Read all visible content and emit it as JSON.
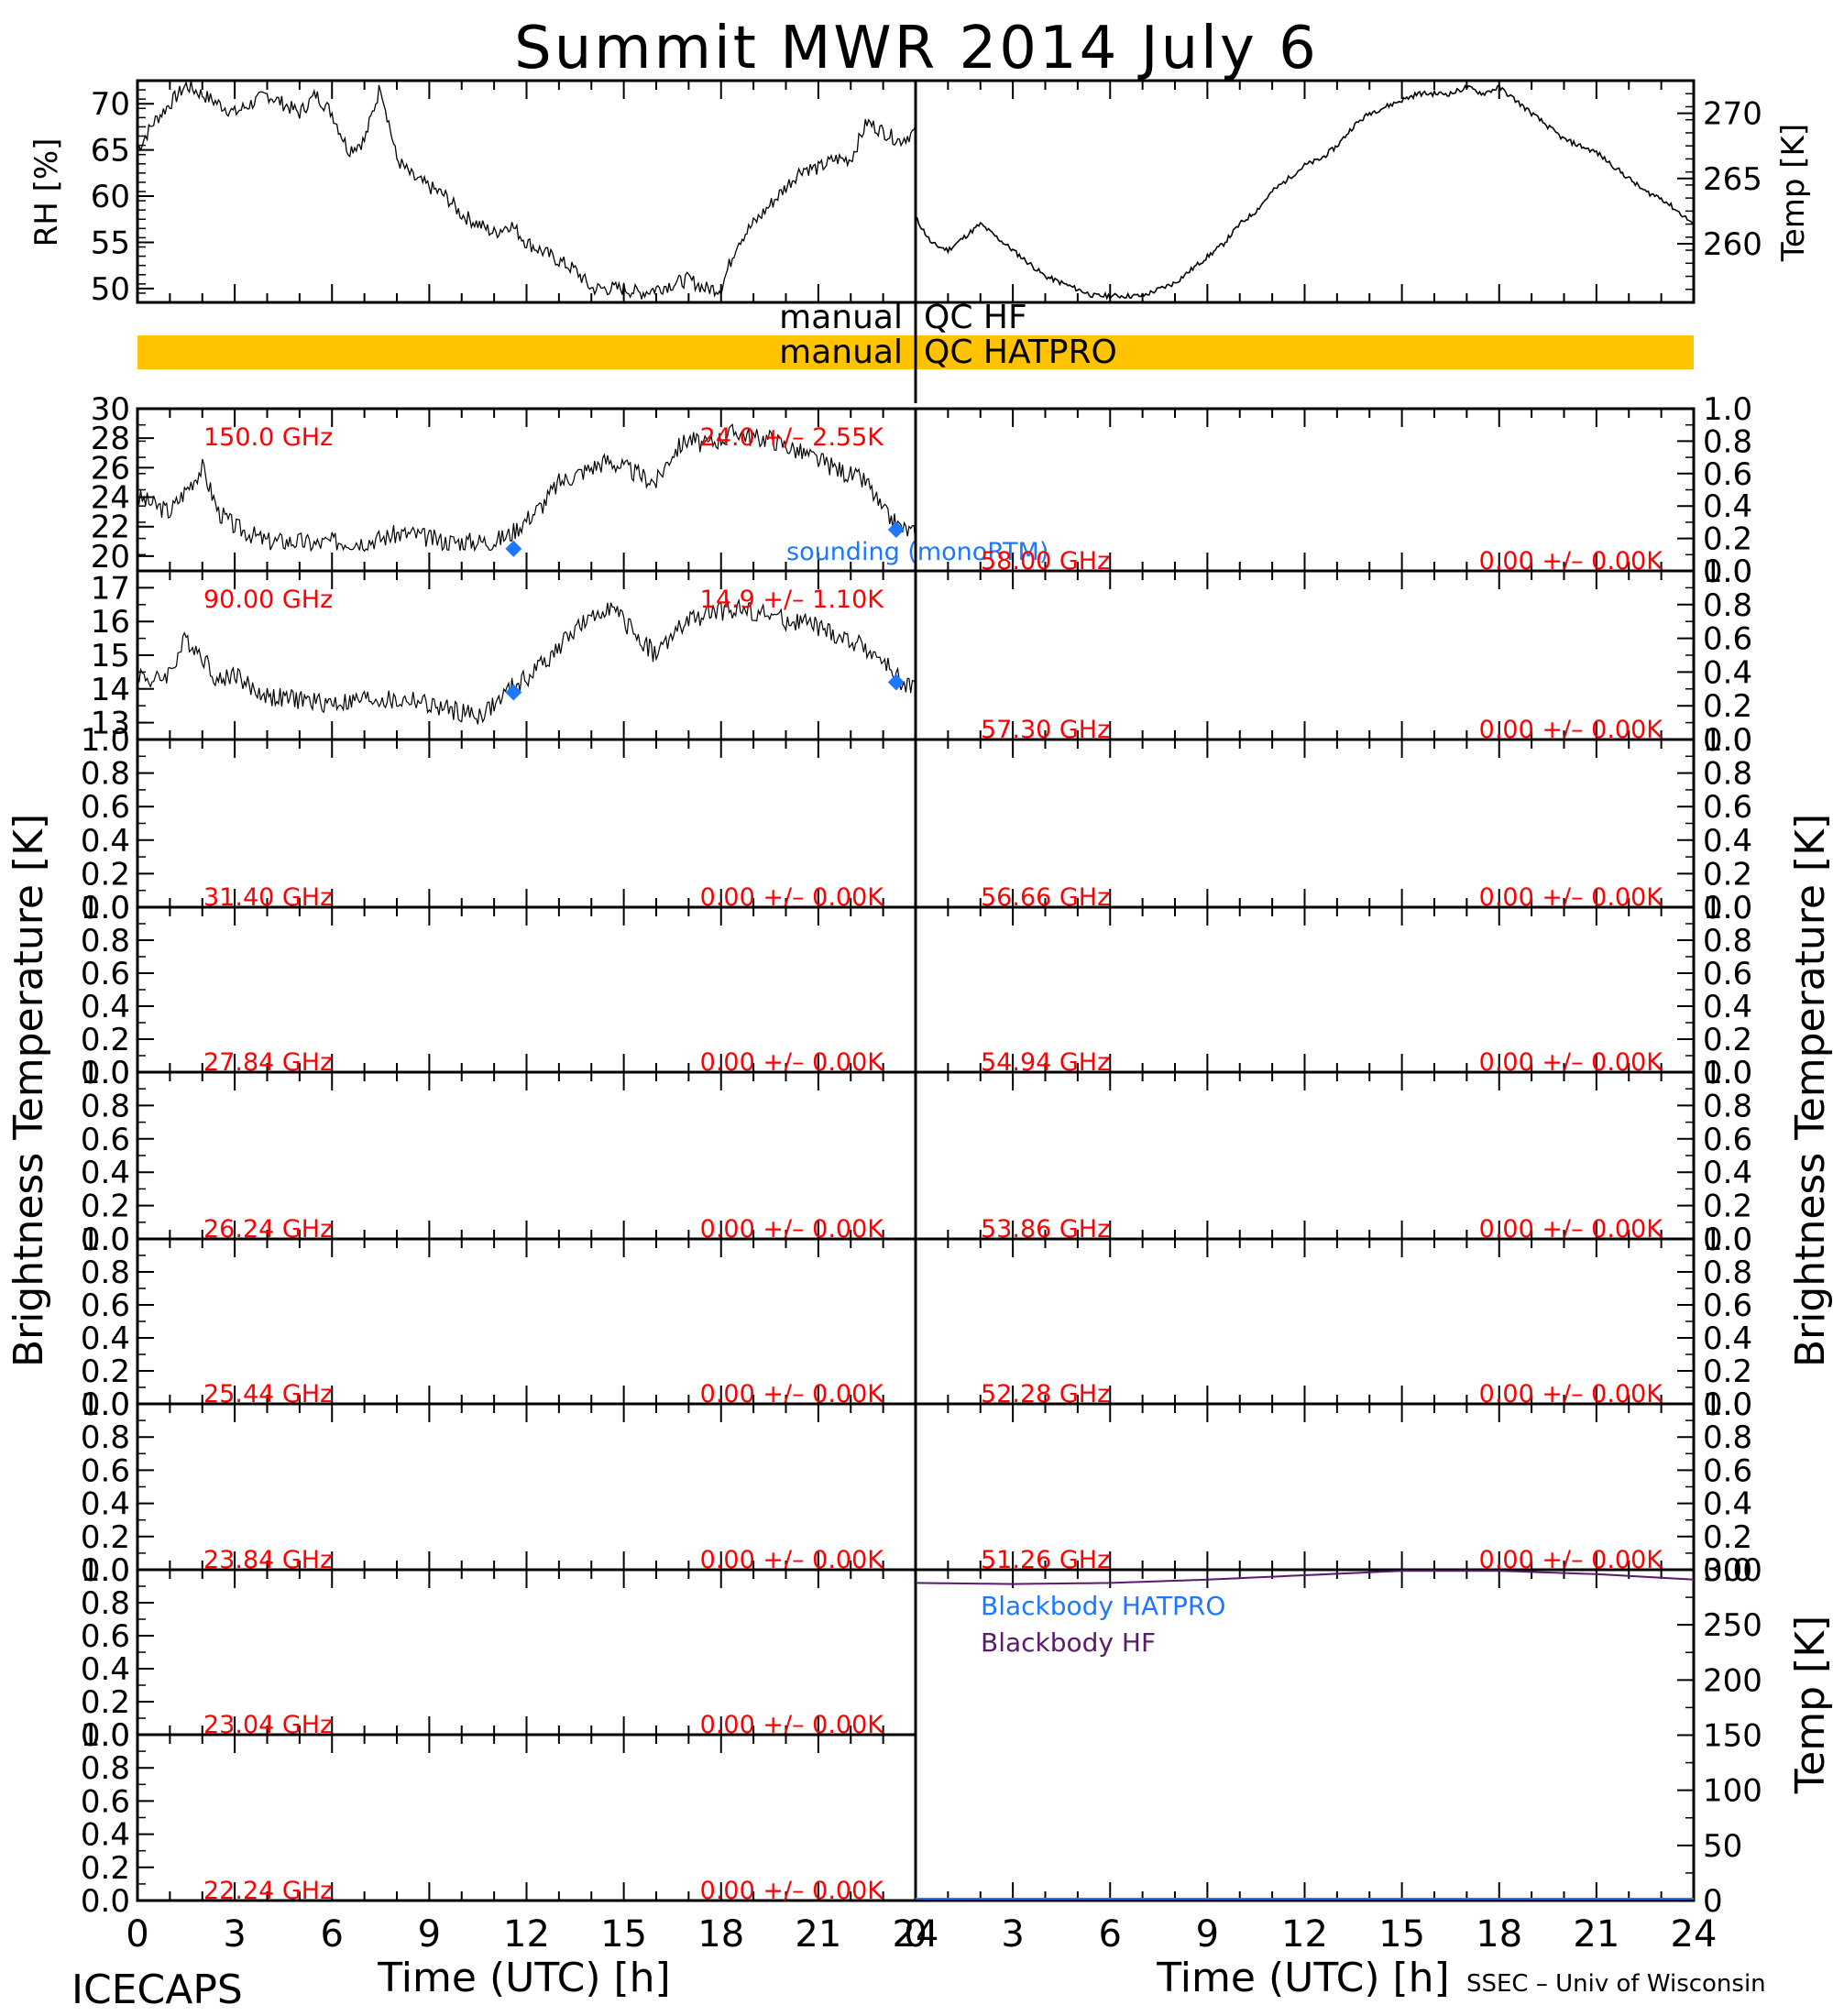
{
  "title": "Summit MWR 2014 July  6",
  "footer_left": "ICECAPS",
  "footer_right": "SSEC – Univ of Wisconsin",
  "xlabel": "Time (UTC) [h]",
  "x_ticks": [
    "0",
    "3",
    "6",
    "9",
    "12",
    "15",
    "18",
    "21",
    "24"
  ],
  "left_ylabel": "Brightness Temperature [K]",
  "right_ylabel": "Brightness Temperature [K]",
  "qc": {
    "hf_left": "manual",
    "hf_right": "QC HF",
    "hatpro_left": "manual",
    "hatpro_right": "QC HATPRO",
    "hatpro_color": "#ffc300"
  },
  "colors": {
    "data": "#000000",
    "label": "#ff0000",
    "sounding": "#1e78ff",
    "bb_hatpro": "#1e78ff",
    "bb_hf": "#5a1a6e"
  },
  "chart_data": [
    {
      "id": "rh",
      "type": "line",
      "ylabel": "RH [%]",
      "xlim": [
        0,
        24
      ],
      "ylim": [
        48.5,
        72.5
      ],
      "yticks": [
        50,
        55,
        60,
        65,
        70
      ],
      "x": [
        0,
        0.5,
        1,
        1.5,
        2,
        2.5,
        3,
        3.5,
        4,
        4.5,
        5,
        5.5,
        6,
        6.5,
        7,
        7.5,
        8,
        8.5,
        9,
        9.5,
        10,
        10.5,
        11,
        11.5,
        12,
        12.5,
        13,
        13.5,
        14,
        14.5,
        15,
        15.5,
        16,
        16.5,
        17,
        17.5,
        18,
        18.5,
        19,
        19.5,
        20,
        20.5,
        21,
        21.5,
        22,
        22.5,
        23,
        23.5,
        24
      ],
      "y": [
        65,
        68,
        70,
        72,
        71,
        70,
        69,
        70,
        71,
        70,
        69,
        71,
        69,
        65,
        66,
        72,
        64,
        62,
        61,
        60,
        58,
        57,
        56,
        57,
        55,
        54,
        53,
        52,
        50,
        50,
        50,
        49.5,
        50,
        50.5,
        51,
        50,
        50,
        55,
        57,
        59,
        61,
        63,
        63,
        64,
        64,
        68,
        67,
        66,
        67
      ]
    },
    {
      "id": "temp",
      "type": "line",
      "ylabel": "Temp [K]",
      "xlim": [
        0,
        24
      ],
      "ylim": [
        255.5,
        272.5
      ],
      "yticks": [
        260,
        265,
        270
      ],
      "x": [
        0,
        0.5,
        1,
        1.5,
        2,
        2.5,
        3,
        3.5,
        4,
        4.5,
        5,
        5.5,
        6,
        6.5,
        7,
        7.5,
        8,
        8.5,
        9,
        9.5,
        10,
        10.5,
        11,
        11.5,
        12,
        12.5,
        13,
        13.5,
        14,
        14.5,
        15,
        15.5,
        16,
        16.5,
        17,
        17.5,
        18,
        18.5,
        19,
        19.5,
        20,
        20.5,
        21,
        21.5,
        22,
        22.5,
        23,
        23.5,
        24
      ],
      "y": [
        262,
        260,
        259.5,
        260.5,
        261.5,
        260.5,
        259.5,
        258.5,
        257.5,
        257,
        256.5,
        256,
        256,
        256,
        256,
        256.5,
        257,
        258,
        259,
        260,
        261.5,
        262.5,
        264,
        265,
        266,
        266.5,
        267.5,
        269,
        270,
        270.5,
        271,
        271.5,
        271.5,
        271.5,
        272,
        271.5,
        272,
        271,
        270,
        269,
        268,
        267.5,
        267,
        266,
        265,
        264,
        263.5,
        262.5,
        261.5
      ]
    },
    {
      "id": "ch-150",
      "type": "line",
      "label": "150.0 GHz",
      "stats": "24.0 +/– 2.55K",
      "ylim": [
        19,
        30
      ],
      "yticks": [
        "20",
        "22",
        "24",
        "26",
        "28",
        "30"
      ],
      "x": [
        0,
        0.5,
        1,
        1.5,
        2,
        2.5,
        3,
        3.5,
        4,
        4.5,
        5,
        5.5,
        6,
        6.5,
        7,
        7.5,
        8,
        8.5,
        9,
        9.5,
        10,
        10.5,
        11,
        11.5,
        12,
        12.5,
        13,
        13.5,
        14,
        14.5,
        15,
        15.5,
        16,
        16.5,
        17,
        17.5,
        18,
        18.5,
        19,
        19.5,
        20,
        20.5,
        21,
        21.5,
        22,
        22.5,
        23,
        23.5,
        24
      ],
      "y": [
        24,
        23.5,
        23,
        24.5,
        26,
        23,
        22,
        21.5,
        21,
        21,
        21,
        20.8,
        21,
        21,
        21,
        21.2,
        21.5,
        21.5,
        21.2,
        21,
        21,
        21,
        21,
        21.5,
        22.5,
        23.5,
        25,
        25.5,
        26,
        26.5,
        26,
        25.5,
        25,
        27,
        28,
        27.5,
        28,
        28.5,
        28,
        28,
        27.5,
        27,
        26.5,
        26,
        25.5,
        25,
        23,
        22,
        21.5
      ],
      "sounding": [
        {
          "x": 11.6,
          "y": 20.5
        },
        {
          "x": 23.4,
          "y": 21.8
        }
      ],
      "sounding_label": "sounding (monoRTM)"
    },
    {
      "id": "ch-90",
      "type": "line",
      "label": "90.00 GHz",
      "stats": "14.9 +/– 1.10K",
      "ylim": [
        12.5,
        17.5
      ],
      "yticks": [
        "13",
        "14",
        "15",
        "16",
        "17"
      ],
      "x": [
        0,
        0.5,
        1,
        1.5,
        2,
        2.5,
        3,
        3.5,
        4,
        4.5,
        5,
        5.5,
        6,
        6.5,
        7,
        7.5,
        8,
        8.5,
        9,
        9.5,
        10,
        10.5,
        11,
        11.5,
        12,
        12.5,
        13,
        13.5,
        14,
        14.5,
        15,
        15.5,
        16,
        16.5,
        17,
        17.5,
        18,
        18.5,
        19,
        19.5,
        20,
        20.5,
        21,
        21.5,
        22,
        22.5,
        23,
        23.5,
        24
      ],
      "y": [
        14.5,
        14.2,
        14.5,
        15.5,
        15,
        14.2,
        14.5,
        14,
        13.8,
        13.7,
        13.7,
        13.6,
        13.6,
        13.6,
        13.7,
        13.7,
        13.6,
        13.7,
        13.5,
        13.4,
        13.3,
        13.2,
        13.5,
        14,
        14.3,
        14.8,
        15.2,
        15.8,
        16,
        16.5,
        16,
        15.5,
        15,
        15.6,
        16,
        16.2,
        16.3,
        16.4,
        16.3,
        16.2,
        16,
        16,
        15.8,
        15.6,
        15.4,
        15.2,
        14.8,
        14.3,
        14
      ],
      "sounding": [
        {
          "x": 11.6,
          "y": 13.9
        },
        {
          "x": 23.4,
          "y": 14.2
        }
      ]
    },
    {
      "id": "ch-3140",
      "type": "line",
      "label": "31.40 GHz",
      "stats": "0.00 +/– 0.00K",
      "ylim": [
        0,
        1
      ],
      "yticks": [
        "0.0",
        "0.2",
        "0.4",
        "0.6",
        "0.8",
        "1.0"
      ]
    },
    {
      "id": "ch-2784",
      "type": "line",
      "label": "27.84 GHz",
      "stats": "0.00 +/– 0.00K",
      "ylim": [
        0,
        1
      ],
      "yticks": [
        "0.0",
        "0.2",
        "0.4",
        "0.6",
        "0.8",
        "1.0"
      ]
    },
    {
      "id": "ch-2624",
      "type": "line",
      "label": "26.24 GHz",
      "stats": "0.00 +/– 0.00K",
      "ylim": [
        0,
        1
      ],
      "yticks": [
        "0.0",
        "0.2",
        "0.4",
        "0.6",
        "0.8",
        "1.0"
      ]
    },
    {
      "id": "ch-2544",
      "type": "line",
      "label": "25.44 GHz",
      "stats": "0.00 +/– 0.00K",
      "ylim": [
        0,
        1
      ],
      "yticks": [
        "0.0",
        "0.2",
        "0.4",
        "0.6",
        "0.8",
        "1.0"
      ]
    },
    {
      "id": "ch-2384",
      "type": "line",
      "label": "23.84 GHz",
      "stats": "0.00 +/– 0.00K",
      "ylim": [
        0,
        1
      ],
      "yticks": [
        "0.0",
        "0.2",
        "0.4",
        "0.6",
        "0.8",
        "1.0"
      ]
    },
    {
      "id": "ch-2304",
      "type": "line",
      "label": "23.04 GHz",
      "stats": "0.00 +/– 0.00K",
      "ylim": [
        0,
        1
      ],
      "yticks": [
        "0.0",
        "0.2",
        "0.4",
        "0.6",
        "0.8",
        "1.0"
      ]
    },
    {
      "id": "ch-2224",
      "type": "line",
      "label": "22.24 GHz",
      "stats": "0.00 +/– 0.00K",
      "ylim": [
        0,
        1
      ],
      "yticks": [
        "0.0",
        "0.2",
        "0.4",
        "0.6",
        "0.8",
        "1.0"
      ]
    },
    {
      "id": "ch-5800",
      "type": "line",
      "label": "58.00 GHz",
      "stats": "0.00 +/– 0.00K",
      "ylim": [
        0,
        1
      ],
      "yticks": [
        "0.0",
        "0.2",
        "0.4",
        "0.6",
        "0.8",
        "1.0"
      ]
    },
    {
      "id": "ch-5730",
      "type": "line",
      "label": "57.30 GHz",
      "stats": "0.00 +/– 0.00K",
      "ylim": [
        0,
        1
      ],
      "yticks": [
        "0.0",
        "0.2",
        "0.4",
        "0.6",
        "0.8",
        "1.0"
      ]
    },
    {
      "id": "ch-5666",
      "type": "line",
      "label": "56.66 GHz",
      "stats": "0.00 +/– 0.00K",
      "ylim": [
        0,
        1
      ],
      "yticks": [
        "0.0",
        "0.2",
        "0.4",
        "0.6",
        "0.8",
        "1.0"
      ]
    },
    {
      "id": "ch-5494",
      "type": "line",
      "label": "54.94 GHz",
      "stats": "0.00 +/– 0.00K",
      "ylim": [
        0,
        1
      ],
      "yticks": [
        "0.0",
        "0.2",
        "0.4",
        "0.6",
        "0.8",
        "1.0"
      ]
    },
    {
      "id": "ch-5386",
      "type": "line",
      "label": "53.86 GHz",
      "stats": "0.00 +/– 0.00K",
      "ylim": [
        0,
        1
      ],
      "yticks": [
        "0.0",
        "0.2",
        "0.4",
        "0.6",
        "0.8",
        "1.0"
      ]
    },
    {
      "id": "ch-5228",
      "type": "line",
      "label": "52.28 GHz",
      "stats": "0.00 +/– 0.00K",
      "ylim": [
        0,
        1
      ],
      "yticks": [
        "0.0",
        "0.2",
        "0.4",
        "0.6",
        "0.8",
        "1.0"
      ]
    },
    {
      "id": "ch-5126",
      "type": "line",
      "label": "51.26 GHz",
      "stats": "0.00 +/– 0.00K",
      "ylim": [
        0,
        1
      ],
      "yticks": [
        "0.0",
        "0.2",
        "0.4",
        "0.6",
        "0.8",
        "1.0"
      ]
    },
    {
      "id": "blackbody",
      "type": "line",
      "ylabel": "Temp [K]",
      "ylim": [
        0,
        300
      ],
      "yticks": [
        "0",
        "50",
        "100",
        "150",
        "200",
        "250",
        "300"
      ],
      "series": [
        {
          "name": "Blackbody HATPRO",
          "x": [
            0,
            24
          ],
          "y": [
            0,
            0
          ]
        },
        {
          "name": "Blackbody HF",
          "x": [
            0,
            3,
            6,
            9,
            12,
            15,
            18,
            21,
            24
          ],
          "y": [
            288,
            287,
            288,
            291,
            295,
            299,
            299,
            296,
            291
          ]
        }
      ]
    }
  ]
}
